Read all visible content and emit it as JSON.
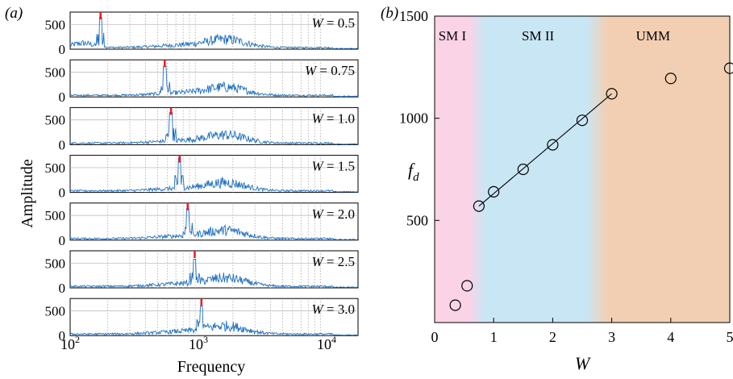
{
  "panel_a": {
    "label": "(a)",
    "xlabel": "Frequency",
    "ylabel": "Amplitude",
    "x_tick_labels": [
      "10^2",
      "10^3",
      "10^4"
    ],
    "y_tick_labels": [
      "0",
      "500"
    ]
  },
  "panel_b": {
    "label": "(b)",
    "xlabel": "W",
    "ylabel_main": "f",
    "ylabel_sub": "d",
    "x_tick_labels": [
      "0",
      "1",
      "2",
      "3",
      "4",
      "5"
    ],
    "y_tick_labels": [
      "500",
      "1000",
      "1500"
    ],
    "regions": [
      {
        "label": "SM I",
        "from": 0.0,
        "to": 0.72,
        "fill": "#fbd3e6",
        "text_color": "#e0569c"
      },
      {
        "label": "SM II",
        "from": 0.72,
        "to": 2.75,
        "fill": "#c9e6f5",
        "text_color": "#2a55b8"
      },
      {
        "label": "UMM",
        "from": 2.75,
        "to": 5.0,
        "fill": "#f2cfb2",
        "text_color": "#d06020"
      }
    ]
  },
  "chart_data": [
    {
      "type": "line",
      "subtype": "stacked spectra",
      "xlabel": "Frequency",
      "ylabel": "Amplitude",
      "x_scale": "log",
      "xlim": [
        100,
        20000
      ],
      "ylim": [
        0,
        750
      ],
      "line_color": "#1f6fbf",
      "peak_marker_color": "#e8202a",
      "series": [
        {
          "name": "W = 0.5",
          "W_label": "0.5",
          "peak_frequency": 175,
          "peak_amplitude": 640
        },
        {
          "name": "W = 0.75",
          "W_label": "0.75",
          "peak_frequency": 570,
          "peak_amplitude": 620
        },
        {
          "name": "W = 1.0",
          "W_label": "1.0",
          "peak_frequency": 640,
          "peak_amplitude": 650
        },
        {
          "name": "W = 1.5",
          "W_label": "1.5",
          "peak_frequency": 750,
          "peak_amplitude": 700
        },
        {
          "name": "W = 2.0",
          "W_label": "2.0",
          "peak_frequency": 870,
          "peak_amplitude": 640
        },
        {
          "name": "W = 2.5",
          "W_label": "2.5",
          "peak_frequency": 990,
          "peak_amplitude": 580
        },
        {
          "name": "W = 3.0",
          "W_label": "3.0",
          "peak_frequency": 1120,
          "peak_amplitude": 600
        }
      ]
    },
    {
      "type": "scatter",
      "xlabel": "W",
      "ylabel": "f_d",
      "xlim": [
        0,
        5
      ],
      "ylim": [
        0,
        1500
      ],
      "points": [
        {
          "x": 0.35,
          "y": 85
        },
        {
          "x": 0.55,
          "y": 180
        },
        {
          "x": 0.75,
          "y": 570
        },
        {
          "x": 1.0,
          "y": 640
        },
        {
          "x": 1.5,
          "y": 750
        },
        {
          "x": 2.0,
          "y": 870
        },
        {
          "x": 2.5,
          "y": 990
        },
        {
          "x": 3.0,
          "y": 1120
        },
        {
          "x": 4.0,
          "y": 1195
        },
        {
          "x": 5.0,
          "y": 1245
        }
      ],
      "fit_line": {
        "x": [
          0.75,
          3.0
        ],
        "y": [
          570,
          1120
        ]
      }
    }
  ]
}
